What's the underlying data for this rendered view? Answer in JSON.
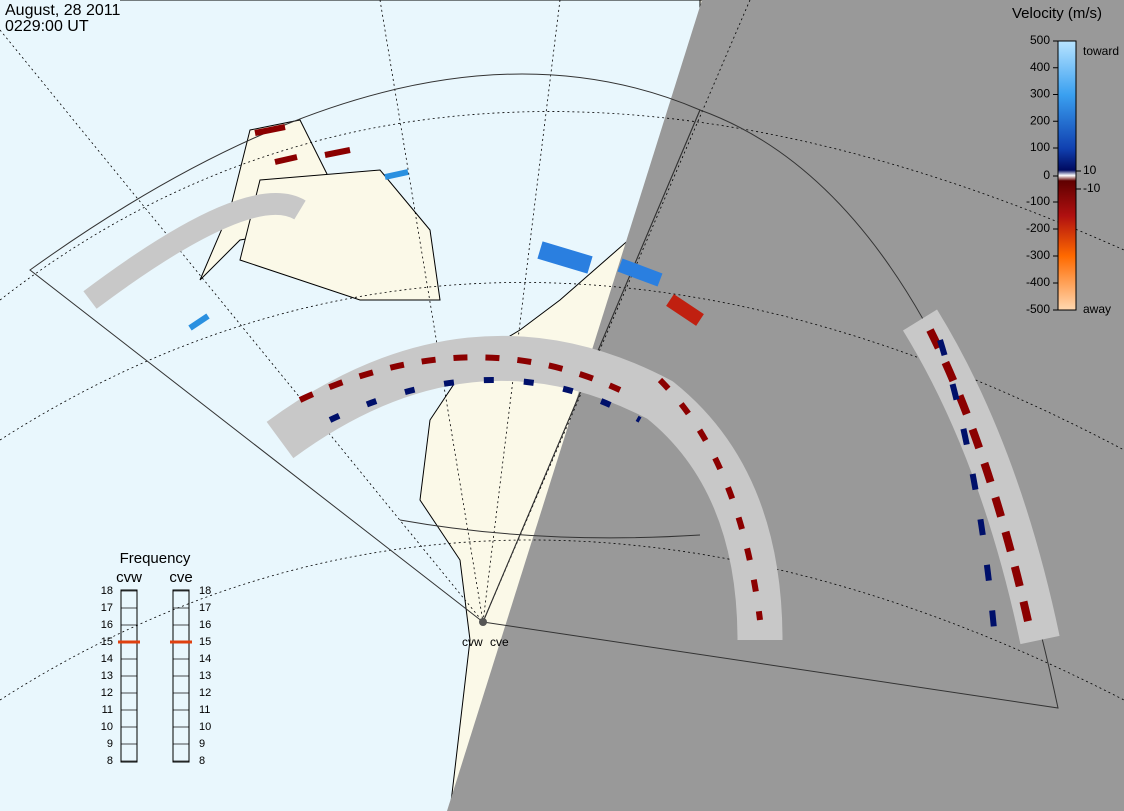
{
  "header": {
    "date": "August, 28 2011",
    "time": "0229:00 UT"
  },
  "velocity_scale": {
    "title": "Velocity (m/s)",
    "ticks": [
      500,
      400,
      300,
      200,
      100,
      10,
      0,
      -10,
      -100,
      -200,
      -300,
      -400,
      -500
    ],
    "toward": "toward",
    "away": "away"
  },
  "frequency": {
    "title": "Frequency",
    "ticks": [
      18,
      17,
      16,
      15,
      14,
      13,
      12,
      11,
      10,
      9,
      8
    ],
    "radars": [
      {
        "name": "cvw",
        "value": 15
      },
      {
        "name": "cve",
        "value": 15
      }
    ]
  },
  "radar_sites": [
    "cvw",
    "cve"
  ]
}
